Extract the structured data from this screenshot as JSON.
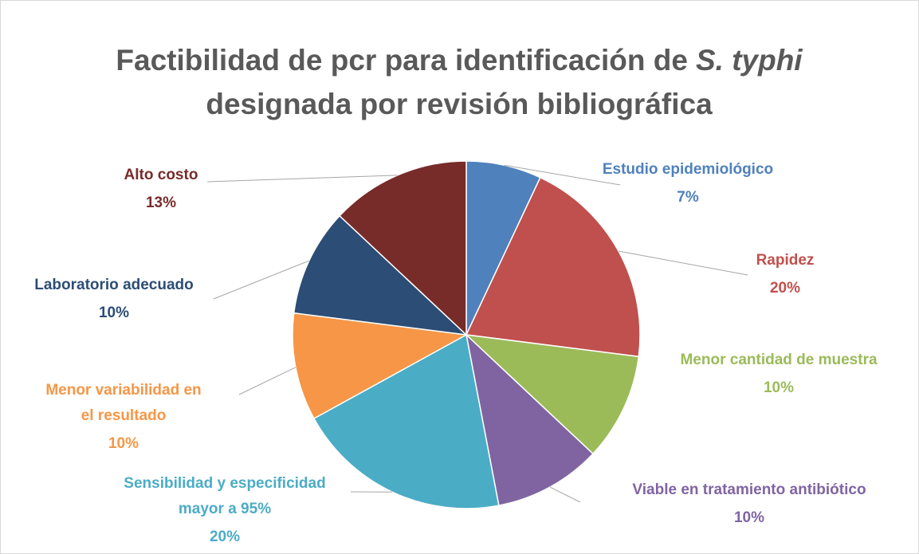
{
  "chart_data": {
    "type": "pie",
    "title": [
      "Factibilidad de pcr para identificación de",
      "S. typhi",
      "designada por revisión bibliográfica"
    ],
    "categories": [
      "Estudio epidemiológico",
      "Rapidez",
      "Menor cantidad de muestra",
      "Viable en tratamiento antibiótico",
      "Sensibilidad y especificidad mayor a 95%",
      "Menor variabilidad en el resultado",
      "Laboratorio adecuado",
      "Alto costo"
    ],
    "values": [
      7,
      20,
      10,
      10,
      20,
      10,
      10,
      13
    ],
    "value_labels": [
      "7%",
      "20%",
      "10%",
      "10%",
      "20%",
      "10%",
      "10%",
      "13%"
    ],
    "colors": [
      "#4f81bd",
      "#c0504d",
      "#9bbb59",
      "#8064a2",
      "#4bacc6",
      "#f79646",
      "#2c4d75",
      "#772c2a"
    ]
  }
}
